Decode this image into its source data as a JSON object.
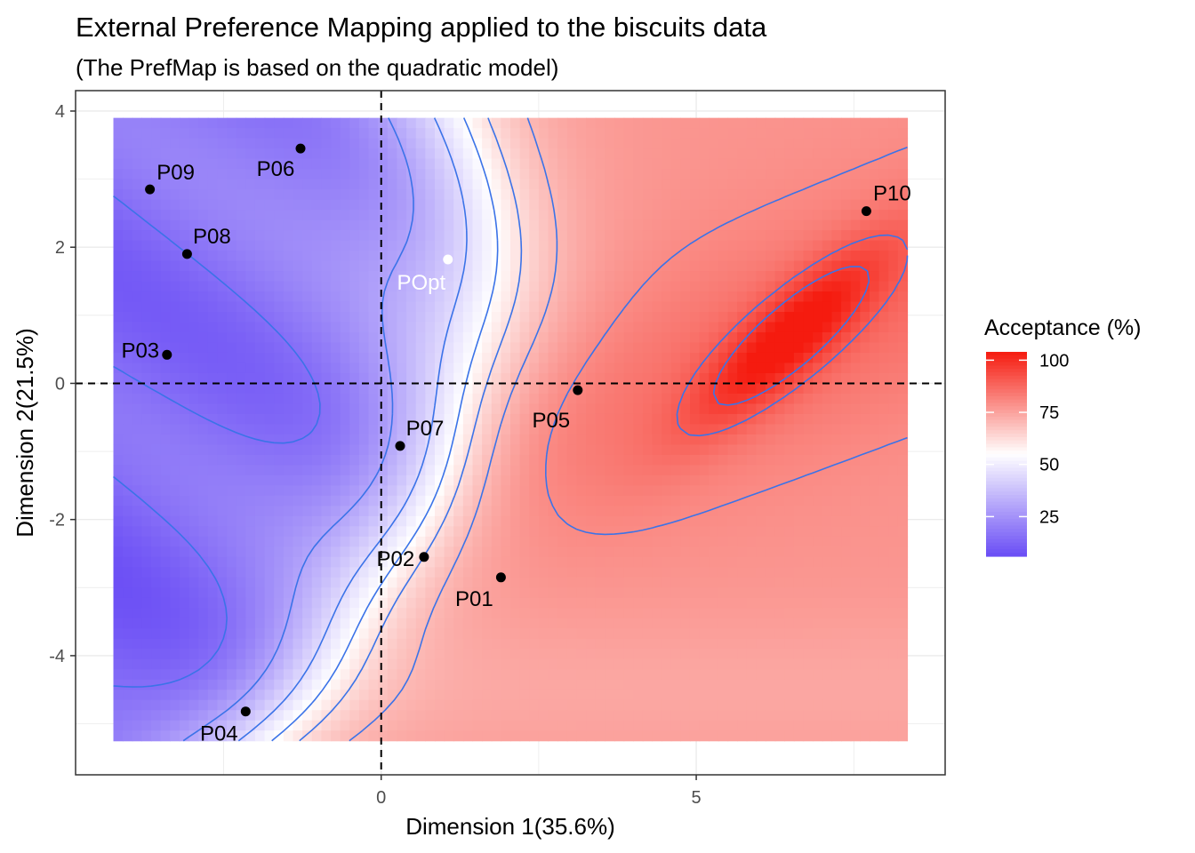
{
  "chart_data": {
    "type": "heatmap",
    "title": "External Preference Mapping applied to the biscuits data",
    "subtitle": "(The PrefMap is based on the quadratic model)",
    "xlabel": "Dimension 1(35.6%)",
    "ylabel": "Dimension 2(21.5%)",
    "xlim": [
      -4.85,
      8.95
    ],
    "ylim": [
      -5.75,
      4.3
    ],
    "x_ticks": [
      0,
      5
    ],
    "x_tick_labels": [
      "0",
      "5"
    ],
    "y_ticks": [
      -4,
      -2,
      0,
      2,
      4
    ],
    "y_tick_labels": [
      "-4",
      "-2",
      "0",
      "2",
      "4"
    ],
    "grid": true,
    "reference_lines": {
      "x": 0,
      "y": 0,
      "style": "dashed"
    },
    "surface": {
      "x_range": [
        -4.25,
        8.35
      ],
      "y_range": [
        -5.25,
        3.9
      ],
      "optimum": {
        "x": 6.5,
        "y": 0.7,
        "value": 101
      },
      "contour_levels": [
        15,
        30,
        45,
        55,
        62,
        70,
        80,
        90,
        97
      ]
    },
    "points": [
      {
        "label": "P01",
        "x": 1.9,
        "y": -2.85,
        "color": "#000000"
      },
      {
        "label": "P02",
        "x": 0.68,
        "y": -2.55,
        "color": "#000000"
      },
      {
        "label": "P03",
        "x": -3.4,
        "y": 0.42,
        "color": "#000000"
      },
      {
        "label": "P04",
        "x": -2.15,
        "y": -4.82,
        "color": "#000000"
      },
      {
        "label": "P05",
        "x": 3.12,
        "y": -0.1,
        "color": "#000000"
      },
      {
        "label": "P06",
        "x": -1.28,
        "y": 3.45,
        "color": "#000000"
      },
      {
        "label": "P07",
        "x": 0.3,
        "y": -0.92,
        "color": "#000000"
      },
      {
        "label": "P08",
        "x": -3.08,
        "y": 1.9,
        "color": "#000000"
      },
      {
        "label": "P09",
        "x": -3.67,
        "y": 2.85,
        "color": "#000000"
      },
      {
        "label": "P10",
        "x": 7.7,
        "y": 2.53,
        "color": "#000000"
      },
      {
        "label": "POpt",
        "x": 1.06,
        "y": 1.82,
        "color": "#ffffff"
      }
    ],
    "legend": {
      "title": "Acceptance (%)",
      "position": "right",
      "range": [
        6,
        104
      ],
      "breaks": [
        25,
        50,
        75,
        100
      ],
      "break_labels": [
        "25",
        "50",
        "75",
        "100"
      ],
      "colors": {
        "low": "#6a4df5",
        "mid": "#ffffff",
        "high": "#f51b0f"
      }
    },
    "colors": {
      "contour": "#3b73e8",
      "grid": "#ebebeb",
      "border": "#333333"
    }
  }
}
